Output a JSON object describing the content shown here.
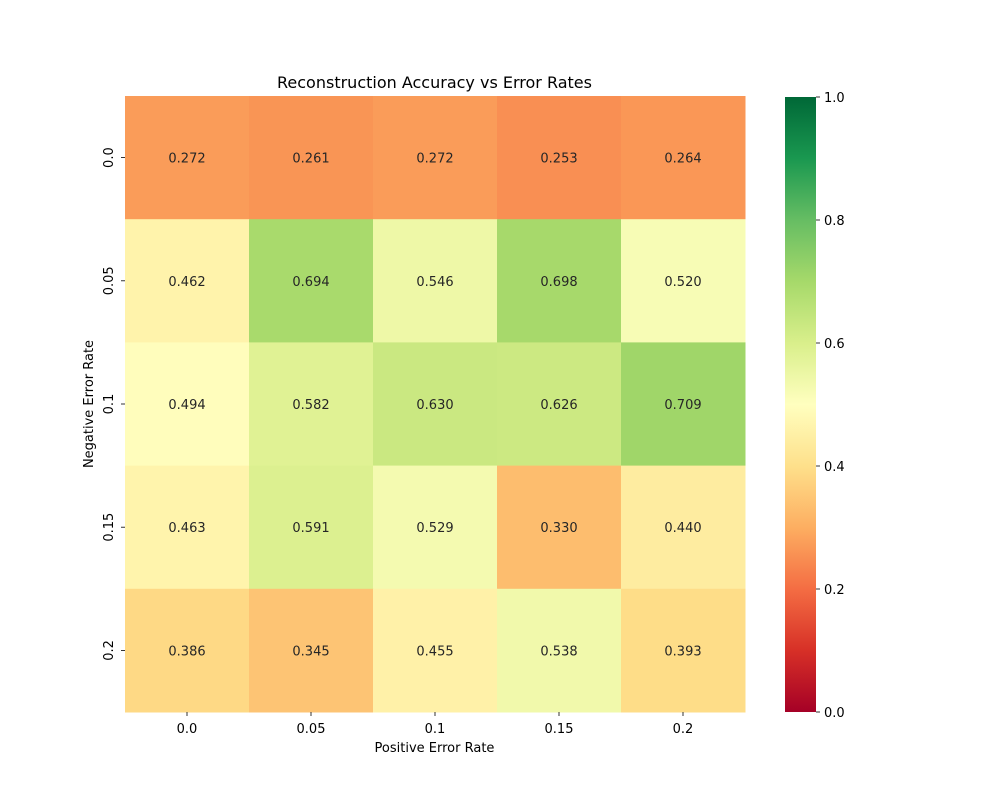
{
  "chart_data": {
    "type": "heatmap",
    "title": "Reconstruction Accuracy vs Error Rates",
    "xlabel": "Positive Error Rate",
    "ylabel": "Negative Error Rate",
    "x_categories": [
      "0.0",
      "0.05",
      "0.1",
      "0.15",
      "0.2"
    ],
    "y_categories": [
      "0.0",
      "0.05",
      "0.1",
      "0.15",
      "0.2"
    ],
    "values": [
      [
        0.272,
        0.261,
        0.272,
        0.253,
        0.264
      ],
      [
        0.462,
        0.694,
        0.546,
        0.698,
        0.52
      ],
      [
        0.494,
        0.582,
        0.63,
        0.626,
        0.709
      ],
      [
        0.463,
        0.591,
        0.529,
        0.33,
        0.44
      ],
      [
        0.386,
        0.345,
        0.455,
        0.538,
        0.393
      ]
    ],
    "value_format": "0.000",
    "colormap": "RdYlGn",
    "vmin": 0.0,
    "vmax": 1.0,
    "colorbar_ticks": [
      "0.0",
      "0.2",
      "0.4",
      "0.6",
      "0.8",
      "1.0"
    ],
    "grid": false
  }
}
